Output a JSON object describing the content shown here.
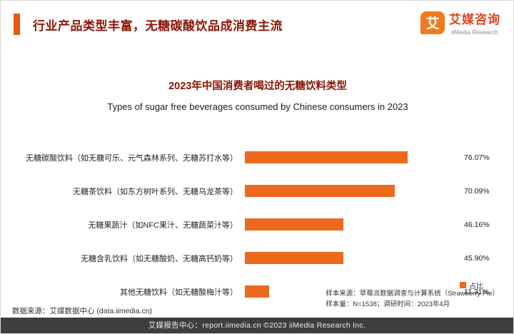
{
  "header": {
    "title": "行业产品类型丰富，无糖碳酸饮品成消费主流",
    "logo_cn": "艾媒咨询",
    "logo_en": "iiMedia Research",
    "logo_glyph": "艾"
  },
  "chart": {
    "title_cn": "2023年中国消费者喝过的无糖饮料类型",
    "title_en": "Types of sugar free beverages consumed by Chinese consumers in 2023",
    "legend_label": "占比"
  },
  "chart_data": {
    "type": "bar",
    "orientation": "horizontal",
    "title": "2023年中国消费者喝过的无糖饮料类型",
    "subtitle": "Types of sugar free beverages consumed by Chinese consumers in 2023",
    "categories": [
      "无糖碳酸饮料（如无糖可乐、元气森林系列、无糖苏打水等）",
      "无糖茶饮料（如东方树叶系列、无糖乌龙茶等）",
      "无糖果蔬汁（如NFC果汁、无糖蔬菜汁等）",
      "无糖含乳饮料（如无糖酸奶、无糖高钙奶等）",
      "其他无糖饮料（如无糖酸梅汁等）"
    ],
    "values": [
      76.07,
      70.09,
      46.16,
      45.9,
      11.31
    ],
    "value_labels": [
      "76.07%",
      "70.09%",
      "46.16%",
      "45.90%",
      "11.31%"
    ],
    "series_name": "占比",
    "xlim": [
      0,
      100
    ],
    "bar_color": "#ec6a1e",
    "legend_position": "bottom-right",
    "grid": false
  },
  "footnotes": {
    "source_left": "数据来源：艾媒数据中心 (data.iimedia.cn)",
    "sample_source": "样本来源：草莓派数据调查与计算系统（Strawberry Pie）",
    "sample_detail": "样本量：N=1538；调研时间：2023年4月"
  },
  "footer": {
    "text": "艾媒报告中心：report.iimedia.cn   ©2023  iiMedia Research Inc."
  },
  "colors": {
    "accent_orange": "#e8570f",
    "bar_orange": "#ec6a1e",
    "title_red": "#8b1505",
    "footer_gray": "#3e3e3e"
  }
}
